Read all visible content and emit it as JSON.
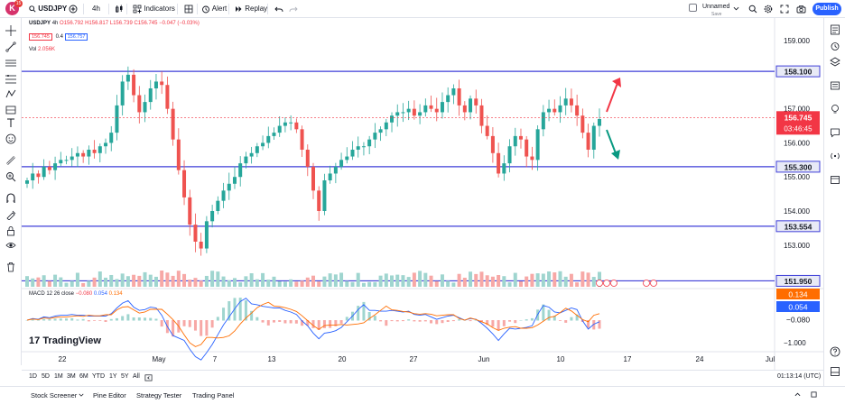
{
  "toolbar": {
    "logo_letter": "K",
    "badge": "15",
    "symbol": "USDJPY",
    "interval": "4h",
    "indicators": "Indicators",
    "alert": "Alert",
    "replay": "Replay",
    "layout_name": "Unnamed",
    "layout_status": "Save",
    "publish": "Publish"
  },
  "legend": {
    "ohlc": "O156.792 H156.817 L156.739 C156.745 −0.047 (−0.03%)",
    "bid": "156.745",
    "spread": "0.4",
    "ask": "156.757",
    "vol_label": "Vol",
    "vol_value": "2.056K",
    "macd_label": "MACD 12 26 close",
    "macd_v1": "−0.080",
    "macd_v2": "0.054",
    "macd_v3": "0.134",
    "tv_brand": "TradingView"
  },
  "price_axis": {
    "ticks": [
      "159.000",
      "157.000",
      "156.000",
      "155.000",
      "154.000",
      "153.000",
      "−1.000"
    ],
    "levels": [
      "158.100",
      "155.300",
      "153.554",
      "151.950"
    ],
    "current_price": "156.745",
    "countdown": "03:46:45",
    "macd_tags": [
      "0.134",
      "0.054",
      "−0.080"
    ]
  },
  "time_axis": {
    "labels": [
      "22",
      "May",
      "7",
      "13",
      "20",
      "27",
      "Jun",
      "10",
      "17",
      "24",
      "Jul"
    ]
  },
  "range_buttons": [
    "1D",
    "5D",
    "1M",
    "3M",
    "6M",
    "YTD",
    "1Y",
    "5Y",
    "All"
  ],
  "clock": "01:13:14 (UTC)",
  "bottom_tabs": [
    "Stock Screener",
    "Pine Editor",
    "Strategy Tester",
    "Trading Panel"
  ],
  "colors": {
    "up": "#26a69a",
    "down": "#ef5350",
    "level": "#3f3fd8",
    "price_tag": "#f23645",
    "accent": "#2962ff"
  },
  "chart_data": {
    "type": "candlestick",
    "symbol": "USDJPY",
    "interval": "4h",
    "horizontal_levels": [
      158.1,
      155.3,
      153.554,
      151.95
    ],
    "last_price": 156.745,
    "ylim": [
      152.2,
      159.4
    ],
    "closes": [
      154.9,
      155.1,
      155.0,
      155.3,
      155.2,
      155.4,
      155.5,
      155.5,
      155.6,
      155.7,
      155.6,
      155.8,
      155.7,
      155.9,
      156.0,
      156.3,
      157.1,
      157.8,
      158.0,
      157.4,
      156.9,
      157.2,
      157.6,
      157.8,
      157.7,
      157.0,
      156.1,
      155.2,
      154.4,
      153.6,
      153.1,
      152.9,
      153.7,
      154.0,
      154.3,
      154.6,
      154.8,
      155.0,
      155.4,
      155.6,
      155.7,
      155.9,
      156.0,
      156.2,
      156.3,
      156.5,
      156.6,
      156.6,
      156.4,
      155.8,
      155.3,
      154.6,
      154.0,
      154.9,
      155.1,
      155.3,
      155.5,
      155.6,
      155.8,
      155.9,
      155.9,
      156.1,
      156.3,
      156.4,
      156.6,
      156.8,
      156.9,
      156.9,
      157.0,
      156.8,
      156.9,
      157.1,
      157.0,
      156.9,
      157.2,
      157.4,
      157.6,
      157.1,
      156.9,
      157.3,
      157.1,
      156.5,
      156.2,
      155.7,
      155.1,
      155.4,
      155.9,
      156.2,
      156.1,
      155.6,
      155.5,
      156.4,
      156.9,
      157.0,
      156.9,
      157.1,
      157.3,
      157.1,
      156.8,
      156.3,
      155.8,
      156.5,
      156.7
    ]
  }
}
